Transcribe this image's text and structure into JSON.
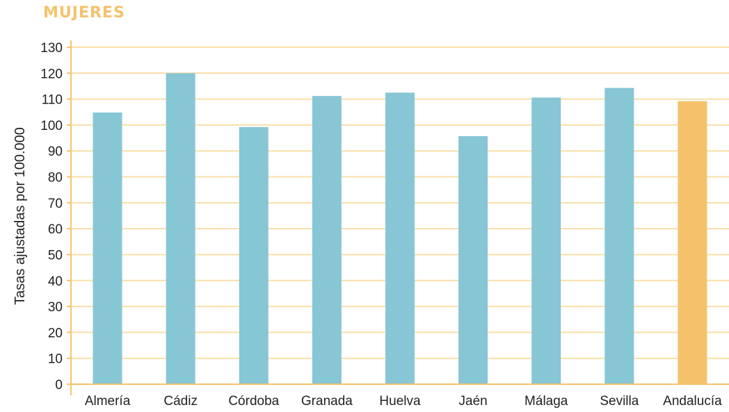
{
  "title": "MUJERES",
  "chart_data": {
    "type": "bar",
    "title": "MUJERES",
    "xlabel": "",
    "ylabel": "Tasas ajustadas por 100.000",
    "ylim": [
      0,
      130
    ],
    "yticks": [
      0,
      10,
      20,
      30,
      40,
      50,
      60,
      70,
      80,
      90,
      100,
      110,
      120,
      130
    ],
    "grid": true,
    "categories": [
      "Almería",
      "Cádiz",
      "Córdoba",
      "Granada",
      "Huelva",
      "Jaén",
      "Málaga",
      "Sevilla",
      "Andalucía"
    ],
    "values": [
      104.8,
      120,
      99.2,
      111.2,
      112.5,
      95.7,
      110.6,
      114.3,
      109.2
    ],
    "colors": [
      "#87c6d5",
      "#87c6d5",
      "#87c6d5",
      "#87c6d5",
      "#87c6d5",
      "#87c6d5",
      "#87c6d5",
      "#87c6d5",
      "#f5c26b"
    ]
  },
  "style": {
    "grid_color": "#f9dfa8",
    "axis_color": "#f5c26b",
    "bar_color": "#87c6d5",
    "highlight_color": "#f5c26b"
  }
}
